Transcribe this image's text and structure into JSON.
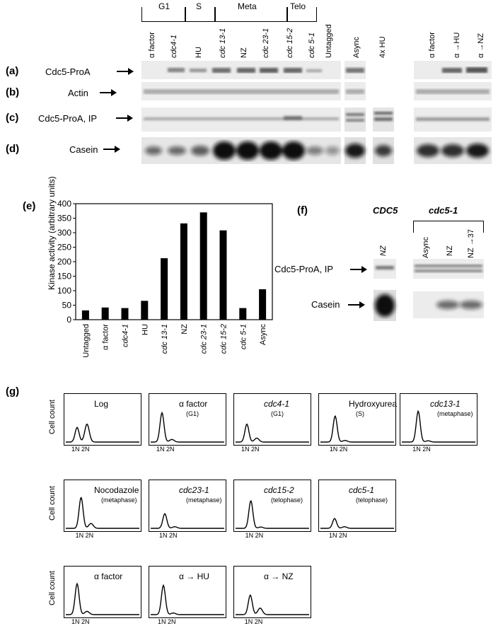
{
  "panel_labels": {
    "a": "(a)",
    "b": "(b)",
    "c": "(c)",
    "d": "(d)",
    "e": "(e)",
    "f": "(f)",
    "g": "(g)"
  },
  "row_labels": {
    "a": "Cdc5-ProA",
    "b": "Actin",
    "c": "Cdc5-ProA,  IP",
    "d": "Casein"
  },
  "groups": [
    {
      "label": "G1"
    },
    {
      "label": "S"
    },
    {
      "label": "Meta"
    },
    {
      "label": "Telo"
    }
  ],
  "lanes_main": [
    "α factor",
    "cdc4-1",
    "HU",
    "cdc 13-1",
    "NZ",
    "cdc 23-1",
    "cdc 15-2",
    "cdc 5-1",
    "Untagged"
  ],
  "lanes_mid": [
    "Async",
    "4x HU"
  ],
  "lanes_right": [
    "α factor",
    "α →HU",
    "α →NZ"
  ],
  "chart_data": {
    "type": "bar",
    "title": "",
    "xlabel": "",
    "ylabel": "Kinase activity (arbitrary units)",
    "ylim": [
      0,
      400
    ],
    "yticks": [
      0,
      50,
      100,
      150,
      200,
      250,
      300,
      350,
      400
    ],
    "categories": [
      "Untagged",
      "α factor",
      "cdc4-1",
      "HU",
      "cdc 13-1",
      "NZ",
      "cdc 23-1",
      "cdc 15-2",
      "cdc 5-1",
      "Async"
    ],
    "values": [
      32,
      42,
      40,
      65,
      212,
      332,
      370,
      308,
      40,
      105
    ]
  },
  "panel_f": {
    "cdc5_label": "CDC5",
    "cdc51_label": "cdc5-1",
    "lanes": [
      "NZ",
      "Async",
      "NZ",
      "NZ →37"
    ],
    "rows": [
      "Cdc5-ProA,  IP",
      "Casein"
    ]
  },
  "facs": {
    "ylabel": "Cell count",
    "x1": "1N",
    "x2": "2N",
    "boxes": [
      {
        "title": "Log",
        "sub": ""
      },
      {
        "title": "α factor",
        "sub": "(G1)"
      },
      {
        "title": "cdc4-1",
        "sub": "(G1)"
      },
      {
        "title": "Hydroxyurea",
        "sub": "(S)"
      },
      {
        "title": "cdc13-1",
        "sub": "(metaphase)"
      },
      {
        "title": "Nocodazole",
        "sub": "(metaphase)"
      },
      {
        "title": "cdc23-1",
        "sub": "(metaphase)"
      },
      {
        "title": "cdc15-2",
        "sub": "(telophase)"
      },
      {
        "title": "cdc5-1",
        "sub": "(telophase)"
      },
      {
        "title": "α factor",
        "sub": ""
      },
      {
        "title": "α → HU",
        "sub": ""
      },
      {
        "title": "α → NZ",
        "sub": ""
      }
    ]
  }
}
